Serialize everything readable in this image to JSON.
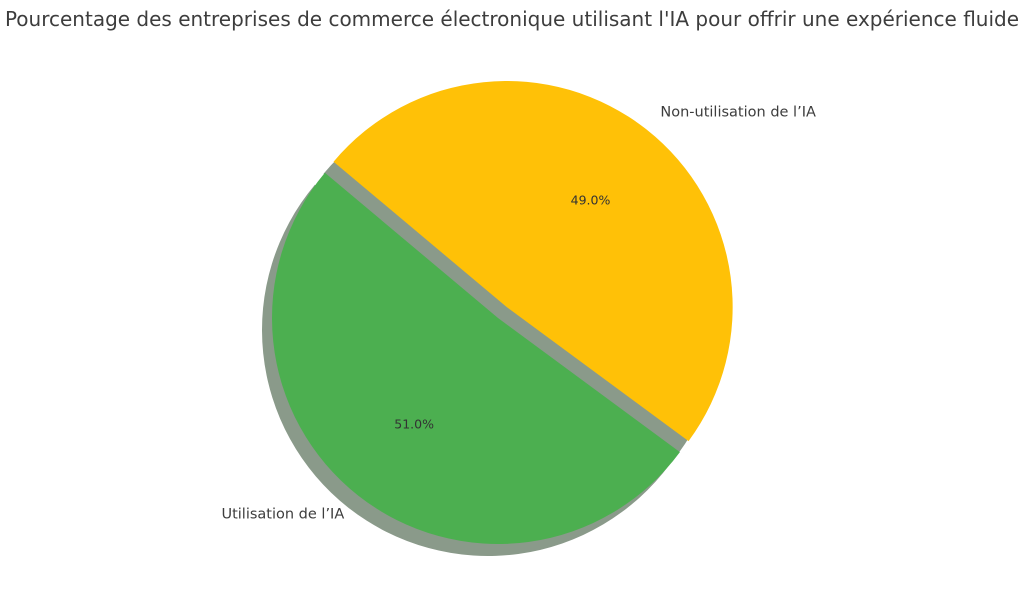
{
  "chart_data": {
    "type": "pie",
    "title": "Pourcentage des entreprises de commerce électronique utilisant l'IA pour offrir une expérience fluide",
    "categories": [
      "Utilisation de l’IA",
      "Non-utilisation de l’IA"
    ],
    "values": [
      51.0,
      49.0
    ],
    "value_labels": [
      "51.0%",
      "49.0%"
    ],
    "colors": [
      "#4caf50",
      "#ffc107"
    ],
    "shadow_color": "#8a9a8a",
    "exploded": "Non-utilisation de l’IA",
    "shadow": true
  }
}
